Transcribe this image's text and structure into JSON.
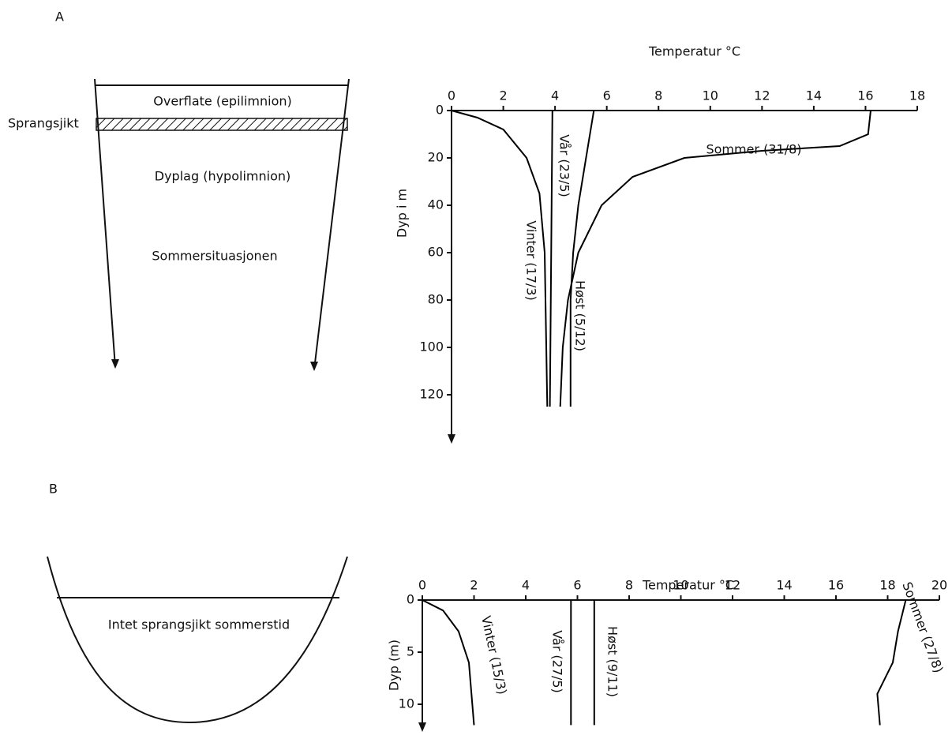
{
  "panels": [
    "A",
    "B"
  ],
  "diagrams": [
    {
      "surface": "Overflate (epilimnion)",
      "thermocline": "Sprangsjikt",
      "deep": "Dyplag (hypolimnion)",
      "caption": "Sommersituasjonen"
    },
    {
      "caption": "Intet sprangsjikt sommerstid"
    }
  ],
  "chart_data": [
    {
      "type": "line",
      "x_label": "Temperatur °C",
      "y_label": "Dyp i m",
      "xlim": [
        0,
        18
      ],
      "xticks": [
        0,
        2,
        4,
        6,
        8,
        10,
        12,
        14,
        16,
        18
      ],
      "ylim": [
        0,
        140
      ],
      "yticks": [
        0,
        20,
        40,
        60,
        80,
        100,
        120
      ],
      "y_inverted": true,
      "series": [
        {
          "name": "Vinter (17/3)",
          "color": "#000000",
          "x": [
            0,
            1,
            2,
            2.9,
            3.4,
            3.6,
            3.7
          ],
          "values": [
            0,
            3,
            8,
            20,
            35,
            60,
            125
          ]
        },
        {
          "name": "Vår (23/5)",
          "color": "#000000",
          "x": [
            3.9,
            3.8
          ],
          "values": [
            0,
            125
          ]
        },
        {
          "name": "Sommer (31/8)",
          "color": "#000000",
          "x": [
            16.2,
            16.1,
            15,
            12,
            9,
            7,
            5.8,
            4.9,
            4.5,
            4.3,
            4.2
          ],
          "values": [
            0,
            10,
            15,
            17,
            20,
            28,
            40,
            60,
            80,
            100,
            125
          ]
        },
        {
          "name": "Høst (5/12)",
          "color": "#000000",
          "x": [
            5.5,
            5.2,
            4.9,
            4.7,
            4.6,
            4.6
          ],
          "values": [
            0,
            20,
            40,
            60,
            80,
            125
          ]
        }
      ]
    },
    {
      "type": "line",
      "x_label": "Temperatur °C",
      "y_label": "Dyp (m)",
      "xlim": [
        0,
        20
      ],
      "xticks": [
        0,
        2,
        4,
        6,
        8,
        10,
        12,
        14,
        16,
        18,
        20
      ],
      "ylim": [
        0,
        12.5
      ],
      "yticks": [
        0,
        5,
        10
      ],
      "y_inverted": true,
      "series": [
        {
          "name": "Vinter (15/3)",
          "color": "#000000",
          "x": [
            0,
            0.8,
            1.4,
            1.8,
            2
          ],
          "values": [
            0,
            1,
            3,
            6,
            12
          ]
        },
        {
          "name": "Vår (27/5)",
          "color": "#000000",
          "x": [
            5.75,
            5.75
          ],
          "values": [
            0,
            12
          ]
        },
        {
          "name": "Høst (9/11)",
          "color": "#000000",
          "x": [
            6.65,
            6.65
          ],
          "values": [
            0,
            12
          ]
        },
        {
          "name": "Sommer (27/8)",
          "color": "#000000",
          "x": [
            18.7,
            18.4,
            18.2,
            17.6,
            17.7
          ],
          "values": [
            0,
            3,
            6,
            9,
            12
          ]
        }
      ]
    }
  ]
}
